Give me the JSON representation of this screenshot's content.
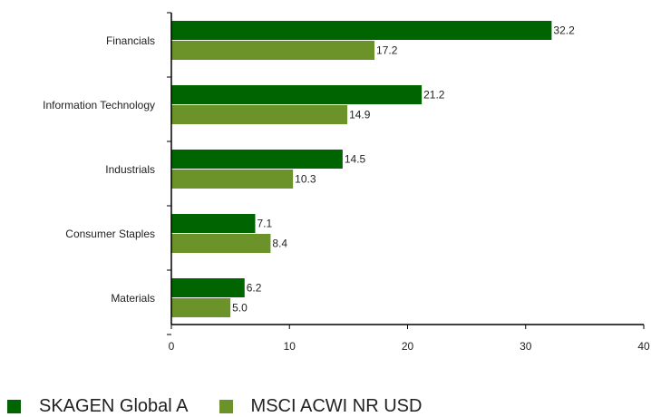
{
  "chart_data": {
    "type": "bar",
    "orientation": "horizontal",
    "categories": [
      "Financials",
      "Information Technology",
      "Industrials",
      "Consumer Staples",
      "Materials"
    ],
    "series": [
      {
        "name": "SKAGEN Global A",
        "color": "#006400",
        "values": [
          32.2,
          21.2,
          14.5,
          7.1,
          6.2
        ],
        "labels": [
          "32.2",
          "21.2",
          "14.5",
          "7.1",
          "6.2"
        ]
      },
      {
        "name": "MSCI ACWI NR USD",
        "color": "#6B9329",
        "values": [
          17.2,
          14.9,
          10.3,
          8.4,
          5.0
        ],
        "labels": [
          "17.2",
          "14.9",
          "10.3",
          "8.4",
          "5.0"
        ]
      }
    ],
    "xlim": [
      0,
      40
    ],
    "xticks": [
      0,
      10,
      20,
      30,
      40
    ],
    "grid": false,
    "legend_position": "bottom-left"
  }
}
